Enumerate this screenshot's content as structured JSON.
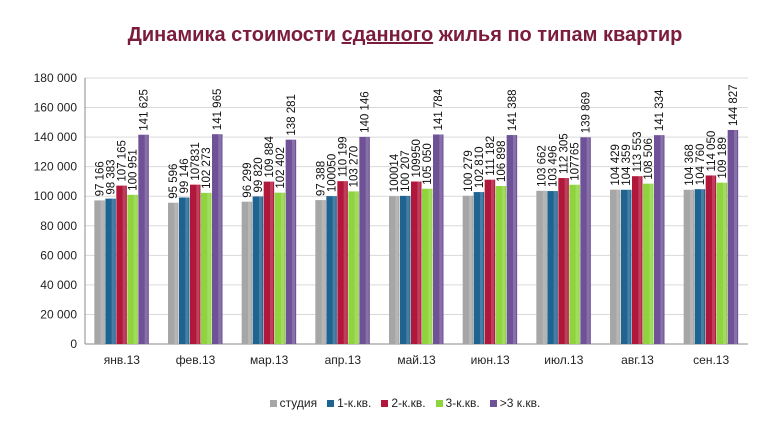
{
  "title_parts": [
    "Динамика стоимости ",
    "сданного",
    " жилья по типам квартир"
  ],
  "chart_data": {
    "type": "bar",
    "title": "Динамика стоимости сданного жилья по типам квартир",
    "categories": [
      "янв.13",
      "фев.13",
      "мар.13",
      "апр.13",
      "май.13",
      "июн.13",
      "июл.13",
      "авг.13",
      "сен.13"
    ],
    "ylim": [
      0,
      180000
    ],
    "yticks": [
      0,
      20000,
      40000,
      60000,
      80000,
      100000,
      120000,
      140000,
      160000,
      180000
    ],
    "ytick_labels": [
      "0",
      "20 000",
      "40 000",
      "60 000",
      "80 000",
      "100 000",
      "120 000",
      "140 000",
      "160 000",
      "180 000"
    ],
    "grid": true,
    "legend_position": "bottom",
    "series": [
      {
        "name": "студия",
        "color": "#a6a6a6",
        "values": [
          97166,
          95596,
          96299,
          97388,
          100014,
          100279,
          103662,
          104429,
          104368
        ],
        "labels": [
          "97 166",
          "95 596",
          "96 299",
          "97 388",
          "100014",
          "100 279",
          "103 662",
          "104 429",
          "104 368"
        ]
      },
      {
        "name": "1-к.кв.",
        "color": "#1f6391",
        "values": [
          98383,
          99146,
          99820,
          100050,
          100207,
          102810,
          103496,
          104359,
          104760
        ],
        "labels": [
          "98 383",
          "99 146",
          "99 820",
          "100050",
          "100 207",
          "102 810",
          "103 496",
          "104 359",
          "104 760"
        ]
      },
      {
        "name": "2-к.кв.",
        "color": "#b0173a",
        "values": [
          107165,
          107831,
          109884,
          110199,
          109950,
          111182,
          112305,
          113553,
          114050
        ],
        "labels": [
          "107 165",
          "107831",
          "109 884",
          "110 199",
          "109950",
          "111 182",
          "112 305",
          "113 553",
          "114 050"
        ]
      },
      {
        "name": "3-к.кв.",
        "color": "#8fd43f",
        "values": [
          100951,
          102273,
          102402,
          103270,
          105050,
          106898,
          107765,
          108506,
          109189
        ],
        "labels": [
          "100 951",
          "102 273",
          "102 402",
          "103 270",
          "105 050",
          "106 898",
          "107765",
          "108 506",
          "109 189"
        ]
      },
      {
        "name": ">3 к.кв.",
        "color": "#6e5196",
        "values": [
          141625,
          141965,
          138281,
          140146,
          141784,
          141388,
          139869,
          141334,
          144827
        ],
        "labels": [
          "141 625",
          "141 965",
          "138 281",
          "140 146",
          "141 784",
          "141 388",
          "139 869",
          "141 334",
          "144 827"
        ]
      }
    ]
  }
}
